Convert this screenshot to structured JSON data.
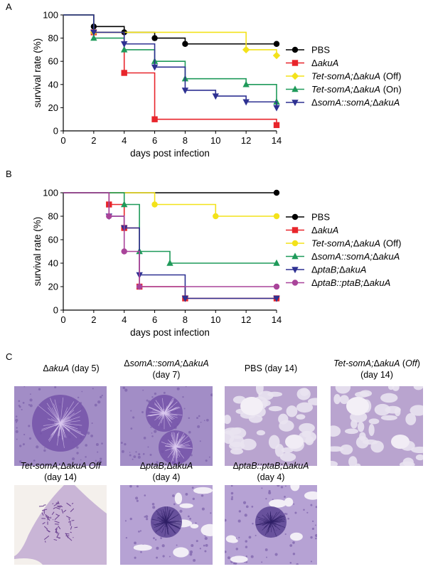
{
  "panels": {
    "a": "A",
    "b": "B",
    "c": "C"
  },
  "chart_data": [
    {
      "type": "line",
      "step": true,
      "xlabel": "days post infection",
      "ylabel": "survival rate (%)",
      "xlim": [
        0,
        14
      ],
      "ylim": [
        0,
        100
      ],
      "xticks": [
        "0",
        "2",
        "4",
        "6",
        "8",
        "10",
        "12",
        "14"
      ],
      "yticks": [
        "0",
        "20",
        "40",
        "60",
        "80",
        "100"
      ],
      "legend_position": "right",
      "series": [
        {
          "name": "PBS",
          "label_pre": "",
          "label_it": "",
          "label_mid": "PBS",
          "label_it2": "",
          "label_post": "",
          "color": "#000000",
          "marker": "circle",
          "x": [
            0,
            2,
            4,
            6,
            8,
            14
          ],
          "y": [
            100,
            90,
            85,
            80,
            75,
            75
          ]
        },
        {
          "name": "ΔakuA",
          "label_pre": "Δ",
          "label_it": "akuA",
          "label_mid": "",
          "label_it2": "",
          "label_post": "",
          "color": "#e8252b",
          "marker": "square",
          "x": [
            0,
            2,
            4,
            6,
            14
          ],
          "y": [
            100,
            85,
            50,
            10,
            5
          ]
        },
        {
          "name": "Tet-somA;ΔakuA (Off)",
          "label_pre": "",
          "label_it": "Tet-somA;",
          "label_mid": "Δ",
          "label_it2": "akuA",
          "label_post": "  (Off)",
          "color": "#f3e21a",
          "marker": "diamond",
          "x": [
            0,
            2,
            12,
            14
          ],
          "y": [
            100,
            85,
            70,
            65
          ]
        },
        {
          "name": "Tet-somA;ΔakuA (On)",
          "label_pre": "",
          "label_it": "Tet-somA;",
          "label_mid": "Δ",
          "label_it2": "akuA",
          "label_post": "  (On)",
          "color": "#1f9a5a",
          "marker": "triangle-up",
          "x": [
            0,
            2,
            4,
            6,
            8,
            12,
            14
          ],
          "y": [
            100,
            80,
            70,
            60,
            45,
            40,
            25
          ]
        },
        {
          "name": "ΔsomA::somA;ΔakuA",
          "label_pre": "Δ",
          "label_it": "somA::somA;",
          "label_mid": "Δ",
          "label_it2": "akuA",
          "label_post": "",
          "color": "#2e3192",
          "marker": "triangle-down",
          "x": [
            0,
            2,
            4,
            6,
            8,
            10,
            12,
            14
          ],
          "y": [
            100,
            85,
            75,
            55,
            35,
            30,
            25,
            20
          ]
        }
      ]
    },
    {
      "type": "line",
      "step": true,
      "xlabel": "days post infection",
      "ylabel": "survival rate (%)",
      "xlim": [
        0,
        14
      ],
      "ylim": [
        0,
        100
      ],
      "xticks": [
        "0",
        "2",
        "4",
        "6",
        "8",
        "10",
        "12",
        "14"
      ],
      "yticks": [
        "0",
        "20",
        "40",
        "60",
        "80",
        "100"
      ],
      "legend_position": "right",
      "series": [
        {
          "name": "PBS",
          "label_pre": "",
          "label_it": "",
          "label_mid": "PBS",
          "label_it2": "",
          "label_post": "",
          "color": "#000000",
          "marker": "circle",
          "x": [
            0,
            14
          ],
          "y": [
            100,
            100
          ]
        },
        {
          "name": "ΔakuA",
          "label_pre": "Δ",
          "label_it": "akuA",
          "label_mid": "",
          "label_it2": "",
          "label_post": "",
          "color": "#e8252b",
          "marker": "square",
          "x": [
            0,
            3,
            4,
            5,
            8,
            14
          ],
          "y": [
            100,
            90,
            70,
            20,
            10,
            10
          ]
        },
        {
          "name": "Tet-somA;ΔakuA (Off)",
          "label_pre": "",
          "label_it": "Tet-somA;",
          "label_mid": "Δ",
          "label_it2": "akuA",
          "label_post": " (Off)",
          "color": "#f3e21a",
          "marker": "circle",
          "x": [
            0,
            6,
            10,
            14
          ],
          "y": [
            100,
            90,
            80,
            80
          ]
        },
        {
          "name": "ΔsomA::somA;ΔakuA",
          "label_pre": "Δ",
          "label_it": "somA::somA;",
          "label_mid": "Δ",
          "label_it2": "akuA",
          "label_post": "",
          "color": "#1f9a5a",
          "marker": "triangle-up",
          "x": [
            0,
            4,
            5,
            7,
            14
          ],
          "y": [
            100,
            90,
            50,
            40,
            40
          ]
        },
        {
          "name": "ΔptaB;ΔakuA",
          "label_pre": "Δ",
          "label_it": "ptaB;",
          "label_mid": "Δ",
          "label_it2": "akuA",
          "label_post": "",
          "color": "#2e3192",
          "marker": "triangle-down",
          "x": [
            0,
            3,
            4,
            5,
            8,
            14
          ],
          "y": [
            100,
            80,
            70,
            30,
            10,
            10
          ]
        },
        {
          "name": "ΔptaB::ptaB;ΔakuA",
          "label_pre": "Δ",
          "label_it": "ptaB::ptaB;",
          "label_mid": "Δ",
          "label_it2": "akuA",
          "label_post": "",
          "color": "#a9449a",
          "marker": "circle",
          "x": [
            0,
            3,
            4,
            5,
            14
          ],
          "y": [
            100,
            80,
            50,
            20,
            20
          ]
        }
      ]
    }
  ],
  "histology": [
    {
      "line1_pre": "Δ",
      "line1_it": "akuA",
      "line1_post": " (day 5)",
      "line2": "",
      "style": "granuloma-large"
    },
    {
      "line1_pre": "Δ",
      "line1_it": "somA::somA;",
      "line1_mid": "Δ",
      "line1_it2": "akuA",
      "line2": "(day 7)",
      "style": "granuloma-double"
    },
    {
      "line1_pre": "PBS (day 14)",
      "line1_it": "",
      "line1_post": "",
      "line2": "",
      "style": "alveoli"
    },
    {
      "line1_pre": "",
      "line1_it": "Tet-somA;",
      "line1_mid": "Δ",
      "line1_it2": "akuA",
      "line1_post": " (",
      "line1_it3": "Off",
      "line1_end": ")",
      "line2": "(day 14)",
      "style": "alveoli"
    },
    {
      "line1_pre": "",
      "line1_it": "Tet-somA;",
      "line1_mid": "Δ",
      "line1_it2": "akuA Off",
      "line2": "(day 14)",
      "style": "airway-fungal"
    },
    {
      "line1_pre": "Δ",
      "line1_it": "ptaB;",
      "line1_mid": "Δ",
      "line1_it2": "akuA",
      "line2": "(day 4)",
      "style": "granuloma-dense"
    },
    {
      "line1_pre": "Δ",
      "line1_it": "ptaB::ptaB;",
      "line1_mid": "Δ",
      "line1_it2": "akuA",
      "line2": "(day 4)",
      "style": "granuloma-dense"
    }
  ]
}
